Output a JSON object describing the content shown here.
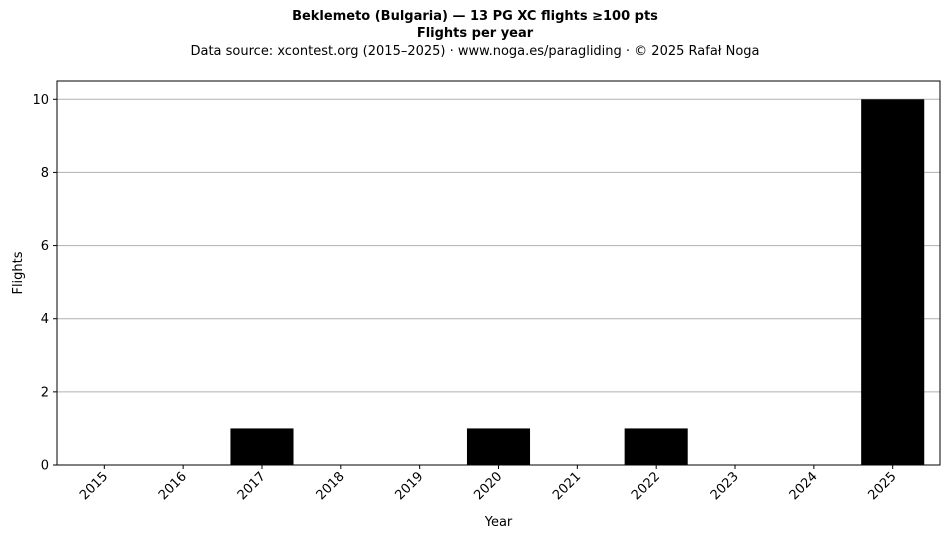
{
  "header": {
    "title": "Beklemeto (Bulgaria)  —  13 PG XC flights ≥100 pts",
    "subtitle": "Flights per year",
    "source": "Data source: xcontest.org (2015–2025)  ·  www.noga.es/paragliding  ·  © 2025 Rafał Noga"
  },
  "chart_data": {
    "type": "bar",
    "categories": [
      "2015",
      "2016",
      "2017",
      "2018",
      "2019",
      "2020",
      "2021",
      "2022",
      "2023",
      "2024",
      "2025"
    ],
    "values": [
      0,
      0,
      1,
      0,
      0,
      1,
      0,
      1,
      0,
      0,
      10
    ],
    "xlabel": "Year",
    "ylabel": "Flights",
    "ylim": [
      0,
      10.5
    ],
    "yticks": [
      0,
      2,
      4,
      6,
      8,
      10
    ],
    "grid": "horizontal",
    "bar_color": "#000000",
    "grid_color": "#b0b0b0"
  }
}
